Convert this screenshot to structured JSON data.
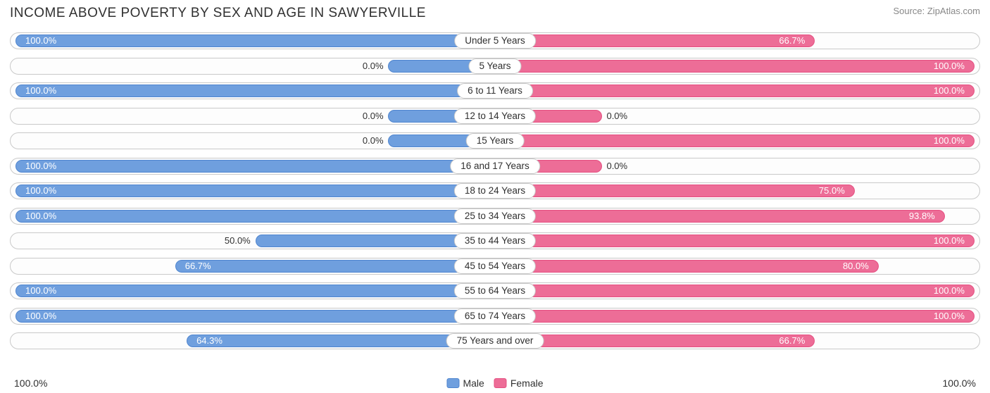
{
  "title": "INCOME ABOVE POVERTY BY SEX AND AGE IN SAWYERVILLE",
  "source": "Source: ZipAtlas.com",
  "colors": {
    "male_fill": "#6f9fde",
    "male_border": "#4f85cf",
    "female_fill": "#ed6d97",
    "female_border": "#e54f81",
    "track_border": "#c9c9c9",
    "text": "#303030",
    "source_text": "#888888",
    "background": "#ffffff"
  },
  "axis": {
    "left": "100.0%",
    "right": "100.0%",
    "max_pct": 100.0
  },
  "legend": {
    "male": "Male",
    "female": "Female"
  },
  "min_bar_pct": 12,
  "label_inside_threshold": 55,
  "rows": [
    {
      "category": "Under 5 Years",
      "male": 100.0,
      "male_label": "100.0%",
      "female": 66.7,
      "female_label": "66.7%"
    },
    {
      "category": "5 Years",
      "male": 0.0,
      "male_label": "0.0%",
      "female": 100.0,
      "female_label": "100.0%"
    },
    {
      "category": "6 to 11 Years",
      "male": 100.0,
      "male_label": "100.0%",
      "female": 100.0,
      "female_label": "100.0%"
    },
    {
      "category": "12 to 14 Years",
      "male": 0.0,
      "male_label": "0.0%",
      "female": 0.0,
      "female_label": "0.0%"
    },
    {
      "category": "15 Years",
      "male": 0.0,
      "male_label": "0.0%",
      "female": 100.0,
      "female_label": "100.0%"
    },
    {
      "category": "16 and 17 Years",
      "male": 100.0,
      "male_label": "100.0%",
      "female": 0.0,
      "female_label": "0.0%"
    },
    {
      "category": "18 to 24 Years",
      "male": 100.0,
      "male_label": "100.0%",
      "female": 75.0,
      "female_label": "75.0%"
    },
    {
      "category": "25 to 34 Years",
      "male": 100.0,
      "male_label": "100.0%",
      "female": 93.8,
      "female_label": "93.8%"
    },
    {
      "category": "35 to 44 Years",
      "male": 50.0,
      "male_label": "50.0%",
      "female": 100.0,
      "female_label": "100.0%"
    },
    {
      "category": "45 to 54 Years",
      "male": 66.7,
      "male_label": "66.7%",
      "female": 80.0,
      "female_label": "80.0%"
    },
    {
      "category": "55 to 64 Years",
      "male": 100.0,
      "male_label": "100.0%",
      "female": 100.0,
      "female_label": "100.0%"
    },
    {
      "category": "65 to 74 Years",
      "male": 100.0,
      "male_label": "100.0%",
      "female": 100.0,
      "female_label": "100.0%"
    },
    {
      "category": "75 Years and over",
      "male": 64.3,
      "male_label": "64.3%",
      "female": 66.7,
      "female_label": "66.7%"
    }
  ]
}
